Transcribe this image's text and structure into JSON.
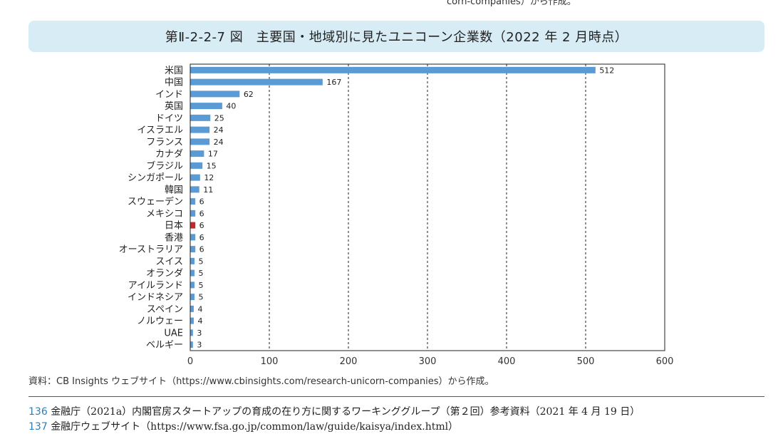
{
  "top_fragment": "corn-companies）から作成。",
  "figure_title": "第Ⅱ-2-2-7 図　主要国・地域別に見たユニコーン企業数（2022 年 2 月時点）",
  "chart_data": {
    "type": "bar",
    "orientation": "horizontal",
    "categories": [
      "米国",
      "中国",
      "インド",
      "英国",
      "ドイツ",
      "イスラエル",
      "フランス",
      "カナダ",
      "ブラジル",
      "シンガポール",
      "韓国",
      "スウェーデン",
      "メキシコ",
      "日本",
      "香港",
      "オーストラリア",
      "スイス",
      "オランダ",
      "アイルランド",
      "インドネシア",
      "スペイン",
      "ノルウェー",
      "UAE",
      "ベルギー"
    ],
    "values": [
      512,
      167,
      62,
      40,
      25,
      24,
      24,
      17,
      15,
      12,
      11,
      6,
      6,
      6,
      6,
      6,
      5,
      5,
      5,
      5,
      4,
      4,
      3,
      3
    ],
    "highlight_category": "日本",
    "colors": {
      "bar": "#5b9bd5",
      "highlight": "#c0282d",
      "grid": "#222222",
      "axis": "#222222"
    },
    "xlim": [
      0,
      600
    ],
    "xticks": [
      0,
      100,
      200,
      300,
      400,
      500,
      600
    ],
    "grid": "vertical dashed",
    "xlabel": "",
    "ylabel": ""
  },
  "source_note": "資料：CB Insights ウェブサイト（https://www.cbinsights.com/research-unicorn-companies）から作成。",
  "footnotes": [
    {
      "num": "136",
      "text": "金融庁（2021a）内閣官房スタートアップの育成の在り方に関するワーキンググループ（第２回）参考資料（2021 年 4 月 19 日）"
    },
    {
      "num": "137",
      "text": "金融庁ウェブサイト（https://www.fsa.go.jp/common/law/guide/kaisya/index.html）"
    }
  ]
}
